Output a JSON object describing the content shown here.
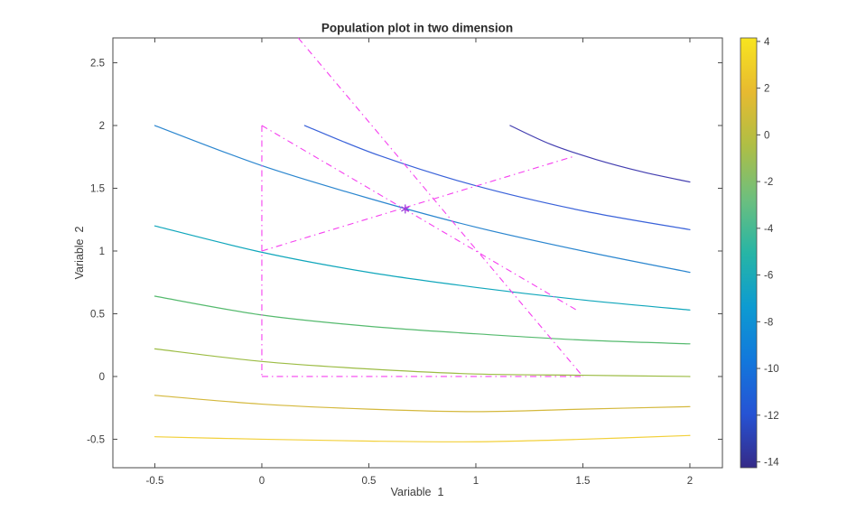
{
  "chart_data": {
    "type": "contour+line",
    "title": "Population plot in two dimension",
    "xlabel": "Variable  1",
    "ylabel": "Variable  2",
    "xlim": [
      -0.696,
      2.152
    ],
    "ylim": [
      -0.727,
      2.698
    ],
    "xticks": [
      -0.5,
      0,
      0.5,
      1,
      1.5,
      2
    ],
    "yticks": [
      -0.5,
      0,
      0.5,
      1,
      1.5,
      2,
      2.5
    ],
    "grid": false,
    "axis_color": "#4a4a4a",
    "contours": [
      {
        "level": -14,
        "color": "#433eb0",
        "points": [
          [
            1.16,
            2.0
          ],
          [
            1.35,
            1.85
          ],
          [
            1.56,
            1.73
          ],
          [
            1.78,
            1.63
          ],
          [
            2.0,
            1.55
          ]
        ]
      },
      {
        "level": -12,
        "color": "#3a62d9",
        "points": [
          [
            0.2,
            2.0
          ],
          [
            0.55,
            1.76
          ],
          [
            1.0,
            1.52
          ],
          [
            1.5,
            1.32
          ],
          [
            2.0,
            1.17
          ]
        ]
      },
      {
        "level": -10,
        "color": "#2b86cf",
        "points": [
          [
            -0.5,
            2.0
          ],
          [
            0.0,
            1.68
          ],
          [
            0.5,
            1.42
          ],
          [
            1.0,
            1.19
          ],
          [
            1.5,
            1.0
          ],
          [
            2.0,
            0.83
          ]
        ]
      },
      {
        "level": -8,
        "color": "#0fa6bb",
        "points": [
          [
            -0.5,
            1.2
          ],
          [
            0.0,
            0.99
          ],
          [
            0.5,
            0.83
          ],
          [
            1.0,
            0.71
          ],
          [
            1.5,
            0.61
          ],
          [
            2.0,
            0.53
          ]
        ]
      },
      {
        "level": -6,
        "color": "#55ba6e",
        "points": [
          [
            -0.5,
            0.64
          ],
          [
            0.0,
            0.49
          ],
          [
            0.5,
            0.4
          ],
          [
            1.0,
            0.34
          ],
          [
            1.5,
            0.29
          ],
          [
            2.0,
            0.26
          ]
        ]
      },
      {
        "level": -4,
        "color": "#9cbc44",
        "points": [
          [
            -0.5,
            0.22
          ],
          [
            0.0,
            0.12
          ],
          [
            0.5,
            0.06
          ],
          [
            1.0,
            0.02
          ],
          [
            1.5,
            0.01
          ],
          [
            2.0,
            0.0
          ]
        ]
      },
      {
        "level": -2,
        "color": "#d4b83c",
        "points": [
          [
            -0.5,
            -0.15
          ],
          [
            0.0,
            -0.22
          ],
          [
            0.5,
            -0.26
          ],
          [
            1.0,
            -0.28
          ],
          [
            1.5,
            -0.26
          ],
          [
            2.0,
            -0.24
          ]
        ]
      },
      {
        "level": 0,
        "color": "#f2d03a",
        "points": [
          [
            -0.5,
            -0.48
          ],
          [
            0.0,
            -0.5
          ],
          [
            0.5,
            -0.515
          ],
          [
            1.0,
            -0.52
          ],
          [
            1.5,
            -0.5
          ],
          [
            2.0,
            -0.47
          ]
        ]
      }
    ],
    "population": {
      "color": "#f540ef",
      "line_style": "dash-dot",
      "segments": [
        [
          [
            0,
            2
          ],
          [
            0,
            0
          ]
        ],
        [
          [
            0,
            0
          ],
          [
            1.49,
            0
          ]
        ],
        [
          [
            0,
            2
          ],
          [
            1.48,
            0.52
          ]
        ],
        [
          [
            0,
            1
          ],
          [
            1.45,
            1.75
          ]
        ],
        [
          [
            0.17,
            2.698
          ],
          [
            1.5,
            0.0
          ]
        ]
      ]
    },
    "best_point": {
      "x": 0.67,
      "y": 1.335,
      "marker": "*",
      "color": "#9a42dc"
    },
    "colorbar": {
      "min": -14.25,
      "max": 4.15,
      "ticks": [
        4,
        2,
        0,
        -2,
        -4,
        -6,
        -8,
        -10,
        -12,
        -14
      ],
      "gradient_bottom_to_top": [
        "#352a87",
        "#2653d4",
        "#1278dc",
        "#0d9bd1",
        "#27b5a5",
        "#6dbf7e",
        "#afbe45",
        "#e7ba30",
        "#f8e51f"
      ]
    }
  }
}
